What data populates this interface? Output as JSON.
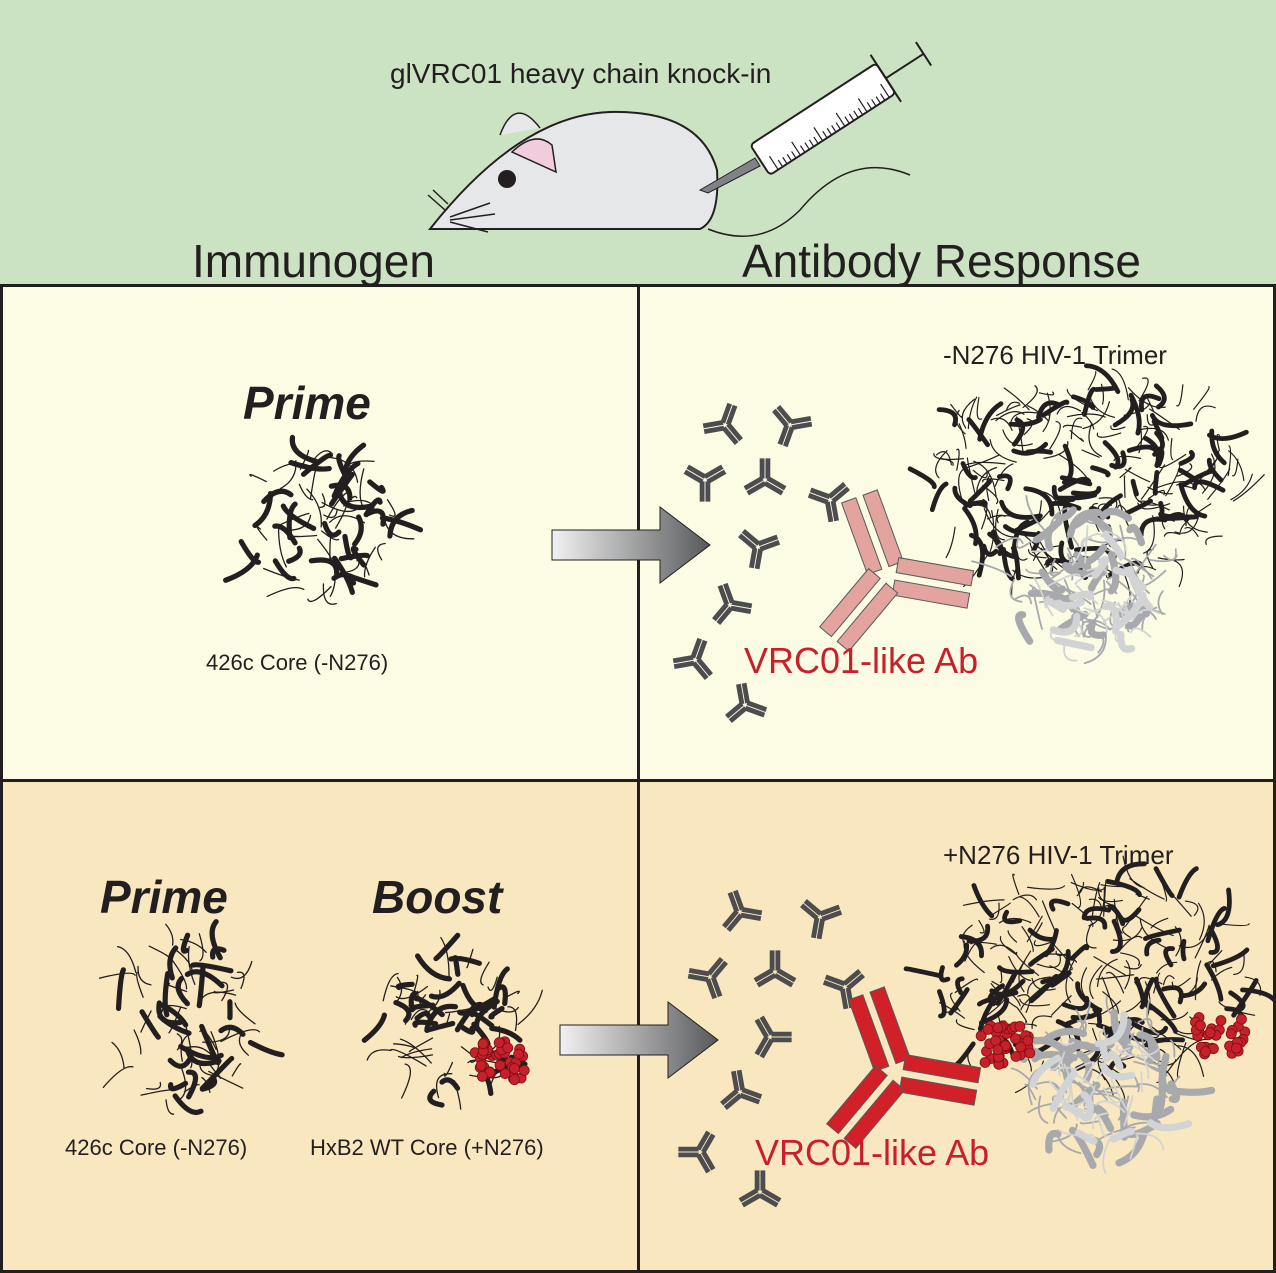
{
  "header": {
    "mouse_label": "glVRC01 heavy chain knock-in",
    "col_left": "Immunogen",
    "col_right": "Antibody Response"
  },
  "row1": {
    "prime_label": "Prime",
    "core_label": "426c Core (-N276)",
    "trimer_label": "-N276 HIV-1 Trimer",
    "ab_label": "VRC01-like Ab",
    "ab_color": "#e3a49f"
  },
  "row2": {
    "prime_label": "Prime",
    "boost_label": "Boost",
    "prime_core_label": "426c Core (-N276)",
    "boost_core_label": "HxB2 WT Core (+N276)",
    "trimer_label": "+N276 HIV-1 Trimer",
    "ab_label": "VRC01-like Ab",
    "ab_color": "#d12028"
  },
  "colors": {
    "header_bg": "#cce3c3",
    "row1_bg": "#fcfbe4",
    "row2_bg": "#f9e7bf",
    "glycan": "#c8202a",
    "small_ab": "#4d4d4f"
  }
}
